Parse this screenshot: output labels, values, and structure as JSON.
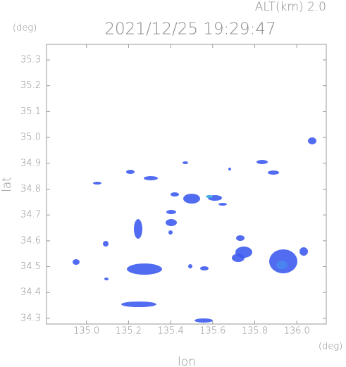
{
  "chart_data": {
    "type": "map",
    "title": "2021/12/25 19:29:47",
    "subtitle": "ALT(km) 2.0",
    "x_label": "lon",
    "x_unit": "(deg)",
    "y_label": "lat",
    "y_unit": "(deg)",
    "xlim": [
      134.81,
      136.14
    ],
    "ylim": [
      34.278,
      35.36
    ],
    "xticks": [
      {
        "value": 135,
        "label": "135.0"
      },
      135.2,
      135.4,
      135.6,
      135.8,
      {
        "value": 136,
        "label": "136.0"
      }
    ],
    "yticks": [
      34.3,
      34.4,
      34.5,
      34.6,
      34.7,
      34.8,
      34.9,
      {
        "value": 35,
        "label": "35.0"
      },
      35.1,
      35.2,
      35.3
    ],
    "color": "#3e5cf0"
  }
}
